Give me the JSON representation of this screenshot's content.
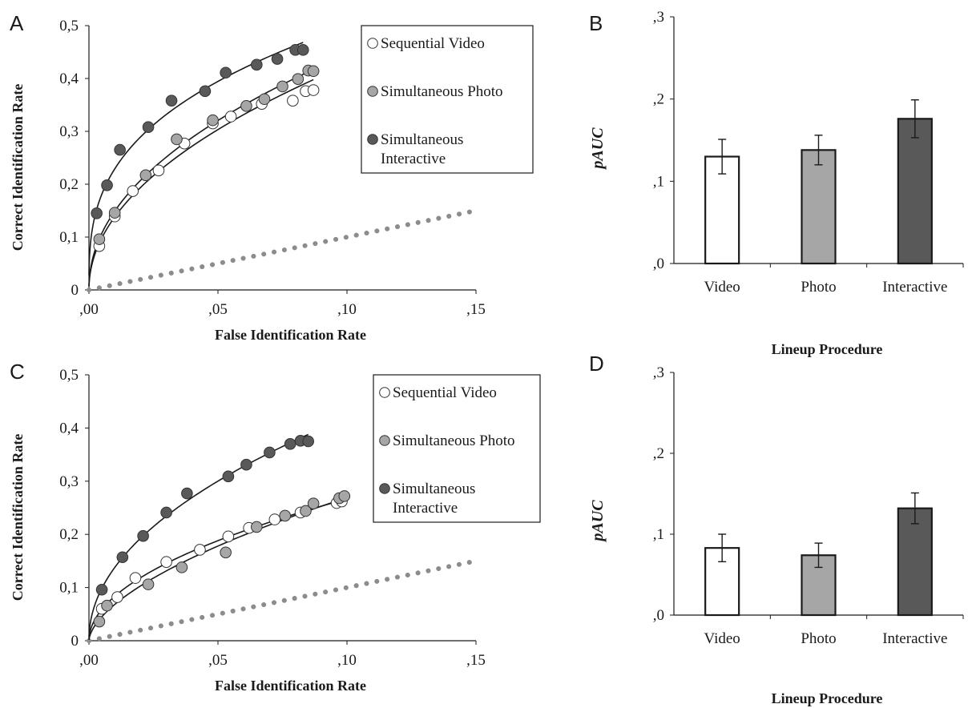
{
  "colors": {
    "sequential_video": "#ffffff",
    "simultaneous_photo": "#a6a6a6",
    "simultaneous_interactive": "#595959",
    "diagonal": "#8c8c8c",
    "axis": "#1a1a1a"
  },
  "chart_data": [
    {
      "panel": "A",
      "type": "scatter",
      "xlabel": "False Identification Rate",
      "ylabel": "Correct Identification Rate",
      "xlim": [
        0,
        0.15
      ],
      "ylim": [
        0,
        0.5
      ],
      "x_ticks": [
        ",00",
        ",05",
        ",10",
        ",15"
      ],
      "y_ticks": [
        "0",
        "0,1",
        "0,2",
        "0,3",
        "0,4",
        "0,5"
      ],
      "legend_position": "top-right",
      "legend": [
        "Sequential Video",
        "Simultaneous Photo",
        "Simultaneous Interactive"
      ],
      "series": [
        {
          "name": "Sequential Video",
          "color": "#ffffff",
          "x": [
            0.004,
            0.01,
            0.017,
            0.027,
            0.037,
            0.048,
            0.055,
            0.067,
            0.079,
            0.084,
            0.087
          ],
          "y": [
            0.083,
            0.139,
            0.187,
            0.226,
            0.277,
            0.315,
            0.328,
            0.352,
            0.358,
            0.376,
            0.378
          ],
          "fit_end": 0.087
        },
        {
          "name": "Simultaneous Photo",
          "color": "#a6a6a6",
          "x": [
            0.004,
            0.01,
            0.022,
            0.034,
            0.048,
            0.061,
            0.068,
            0.075,
            0.081,
            0.085,
            0.087
          ],
          "y": [
            0.096,
            0.146,
            0.217,
            0.285,
            0.321,
            0.348,
            0.361,
            0.385,
            0.399,
            0.415,
            0.414
          ],
          "fit_end": 0.087
        },
        {
          "name": "Simultaneous Interactive",
          "color": "#595959",
          "x": [
            0.003,
            0.007,
            0.012,
            0.023,
            0.032,
            0.045,
            0.053,
            0.065,
            0.073,
            0.08,
            0.083
          ],
          "y": [
            0.145,
            0.198,
            0.265,
            0.308,
            0.358,
            0.376,
            0.411,
            0.426,
            0.437,
            0.454,
            0.454
          ],
          "fit_end": 0.083
        }
      ],
      "chance_line": {
        "x": [
          0,
          0.15
        ],
        "y": [
          0,
          0.15
        ]
      }
    },
    {
      "panel": "B",
      "type": "bar",
      "ylabel": "pAUC",
      "xlabel": "Lineup Procedure",
      "ylim": [
        0,
        0.3
      ],
      "y_ticks": [
        ",0",
        ",1",
        ",2",
        ",3"
      ],
      "categories": [
        "Video",
        "Photo",
        "Interactive"
      ],
      "values": [
        0.13,
        0.138,
        0.176
      ],
      "errors": [
        0.021,
        0.018,
        0.023
      ],
      "bar_colors": [
        "#ffffff",
        "#a6a6a6",
        "#595959"
      ]
    },
    {
      "panel": "C",
      "type": "scatter",
      "xlabel": "False Identification Rate",
      "ylabel": "Correct Identification Rate",
      "xlim": [
        0,
        0.15
      ],
      "ylim": [
        0,
        0.5
      ],
      "x_ticks": [
        ",00",
        ",05",
        ",10",
        ",15"
      ],
      "y_ticks": [
        "0",
        "0,1",
        "0,2",
        "0,3",
        "0,4",
        "0,5"
      ],
      "legend_position": "top-right",
      "legend": [
        "Sequential Video",
        "Simultaneous Photo",
        "Simultaneous Interactive"
      ],
      "series": [
        {
          "name": "Sequential Video",
          "color": "#ffffff",
          "x": [
            0.005,
            0.011,
            0.018,
            0.03,
            0.043,
            0.054,
            0.062,
            0.072,
            0.082,
            0.096,
            0.098
          ],
          "y": [
            0.06,
            0.082,
            0.118,
            0.148,
            0.171,
            0.196,
            0.212,
            0.228,
            0.241,
            0.259,
            0.262
          ],
          "fit_end": 0.098
        },
        {
          "name": "Simultaneous Photo",
          "color": "#a6a6a6",
          "x": [
            0.004,
            0.007,
            0.023,
            0.036,
            0.053,
            0.065,
            0.076,
            0.084,
            0.087,
            0.097,
            0.099
          ],
          "y": [
            0.036,
            0.066,
            0.106,
            0.138,
            0.166,
            0.214,
            0.235,
            0.244,
            0.258,
            0.268,
            0.272
          ],
          "fit_end": 0.099
        },
        {
          "name": "Simultaneous Interactive",
          "color": "#595959",
          "x": [
            0.005,
            0.013,
            0.021,
            0.03,
            0.038,
            0.054,
            0.061,
            0.07,
            0.078,
            0.082,
            0.085
          ],
          "y": [
            0.096,
            0.157,
            0.197,
            0.241,
            0.277,
            0.309,
            0.331,
            0.354,
            0.37,
            0.376,
            0.375
          ],
          "fit_end": 0.085
        }
      ],
      "chance_line": {
        "x": [
          0,
          0.15
        ],
        "y": [
          0,
          0.15
        ]
      }
    },
    {
      "panel": "D",
      "type": "bar",
      "ylabel": "pAUC",
      "xlabel": "Lineup Procedure",
      "ylim": [
        0,
        0.3
      ],
      "y_ticks": [
        ",0",
        ",1",
        ",2",
        ",3"
      ],
      "categories": [
        "Video",
        "Photo",
        "Interactive"
      ],
      "values": [
        0.083,
        0.074,
        0.132
      ],
      "errors": [
        0.017,
        0.015,
        0.019
      ],
      "bar_colors": [
        "#ffffff",
        "#a6a6a6",
        "#595959"
      ]
    }
  ]
}
